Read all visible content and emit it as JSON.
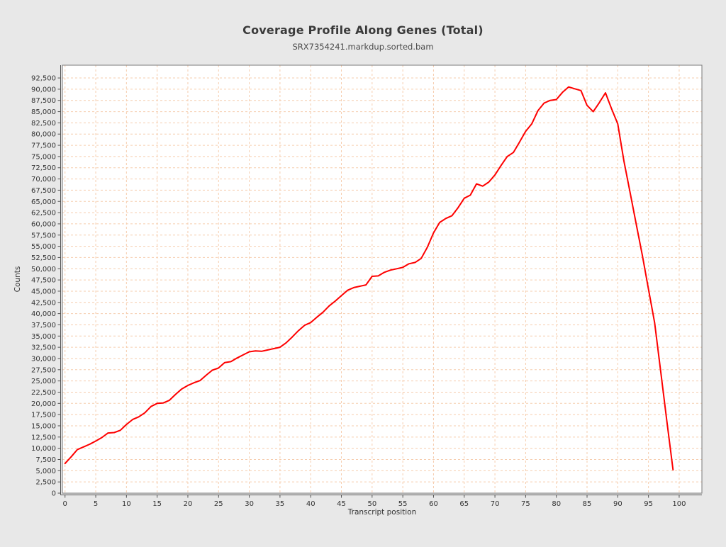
{
  "page": {
    "background": "#e8e8e8"
  },
  "header": {
    "title": "Coverage Profile Along Genes (Total)",
    "subtitle": "SRX7354241.markdup.sorted.bam"
  },
  "chart_data": {
    "type": "line",
    "title": "Coverage Profile Along Genes (Total)",
    "subtitle": "SRX7354241.markdup.sorted.bam",
    "xlabel": "Transcript position",
    "ylabel": "Counts",
    "grid": true,
    "legend_position": "none",
    "x_start": 0,
    "x_step": 1,
    "xlim": [
      -0.43,
      103.7
    ],
    "ylim": [
      0,
      95350
    ],
    "x_ticks": [
      0,
      5,
      10,
      15,
      20,
      25,
      30,
      35,
      40,
      45,
      50,
      55,
      60,
      65,
      70,
      75,
      80,
      85,
      90,
      95,
      100
    ],
    "x_tick_labels": [
      "0",
      "5",
      "10",
      "15",
      "20",
      "25",
      "30",
      "35",
      "40",
      "45",
      "50",
      "55",
      "60",
      "65",
      "70",
      "75",
      "80",
      "85",
      "90",
      "95",
      "100"
    ],
    "y_ticks": [
      0,
      2500,
      5000,
      7500,
      10000,
      12500,
      15000,
      17500,
      20000,
      22500,
      25000,
      27500,
      30000,
      32500,
      35000,
      37500,
      40000,
      42500,
      45000,
      47500,
      50000,
      52500,
      55000,
      57500,
      60000,
      62500,
      65000,
      67500,
      70000,
      72500,
      75000,
      77500,
      80000,
      82500,
      85000,
      87500,
      90000,
      92500
    ],
    "y_tick_labels": [
      "0",
      "2,500",
      "5,000",
      "7,500",
      "10,000",
      "12,500",
      "15,000",
      "17,500",
      "20,000",
      "22,500",
      "25,000",
      "27,500",
      "30,000",
      "32,500",
      "35,000",
      "37,500",
      "40,000",
      "42,500",
      "45,000",
      "47,500",
      "50,000",
      "52,500",
      "55,000",
      "57,500",
      "60,000",
      "62,500",
      "65,000",
      "67,500",
      "70,000",
      "72,500",
      "75,000",
      "77,500",
      "80,000",
      "82,500",
      "85,000",
      "87,500",
      "90,000",
      "92,500"
    ],
    "series": [
      {
        "name": "SRX7354241.markdup.sorted.bam",
        "color": "#fe0000",
        "values": [
          6600,
          8100,
          9700,
          10300,
          10900,
          11600,
          12400,
          13400,
          13500,
          14000,
          15300,
          16400,
          17000,
          17900,
          19300,
          20000,
          20100,
          20700,
          22000,
          23200,
          24000,
          24600,
          25100,
          26300,
          27400,
          27900,
          29100,
          29300,
          30100,
          30800,
          31500,
          31700,
          31600,
          31900,
          32200,
          32500,
          33500,
          34800,
          36200,
          37400,
          38000,
          39200,
          40300,
          41700,
          42800,
          44000,
          45200,
          45800,
          46100,
          46400,
          48300,
          48400,
          49200,
          49700,
          50000,
          50300,
          51100,
          51400,
          52300,
          54800,
          58000,
          60300,
          61200,
          61800,
          63600,
          65700,
          66400,
          68900,
          68400,
          69300,
          70900,
          73000,
          75000,
          75900,
          78200,
          80600,
          82300,
          85200,
          86900,
          87500,
          87700,
          89300,
          90500,
          90100,
          89700,
          86400,
          85000,
          87000,
          89200,
          85600,
          82300,
          74000,
          67000,
          60000,
          53000,
          45500,
          38000,
          27000,
          16000,
          5200
        ]
      }
    ],
    "style": {
      "plot_background": "#ffffff",
      "plot_border_color": "#7a7a7a",
      "grid_color": "#f6cdae",
      "tick_color": "#555555",
      "line_color": "#fe0000"
    }
  }
}
